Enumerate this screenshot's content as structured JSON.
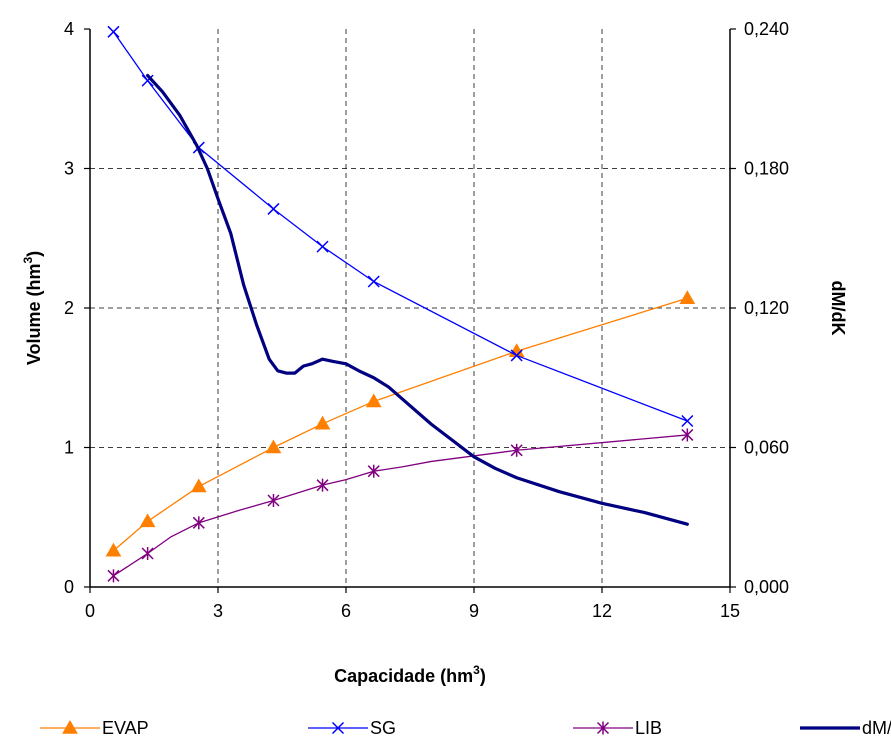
{
  "chart_data": {
    "type": "line",
    "xlabel": "Capacidade (hm",
    "xlabel_sup": "3",
    "xlabel_end": ")",
    "ylabel": "Volume (hm",
    "ylabel_sup": "3",
    "ylabel_end": ")",
    "y2label": "dM/dK",
    "xlim": [
      0,
      15
    ],
    "ylim": [
      0,
      4
    ],
    "y2lim": [
      0,
      0.24
    ],
    "xticks": [
      0,
      3,
      6,
      9,
      12,
      15
    ],
    "xtick_labels": [
      "0",
      "3",
      "6",
      "9",
      "12",
      "15"
    ],
    "yticks": [
      0,
      1,
      2,
      3,
      4
    ],
    "ytick_labels": [
      "0",
      "1",
      "2",
      "3",
      "4"
    ],
    "y2ticks": [
      0,
      0.06,
      0.12,
      0.18,
      0.24
    ],
    "y2tick_labels": [
      "0,000",
      "0,060",
      "0,120",
      "0,180",
      "0,240"
    ],
    "grid": true,
    "legend_position": "bottom",
    "series": [
      {
        "name": "EVAP",
        "axis": "left",
        "color": "#FF7F00",
        "marker": "triangle",
        "x": [
          0.55,
          1.35,
          2.55,
          4.3,
          5.45,
          6.65,
          10,
          14
        ],
        "y": [
          0.26,
          0.47,
          0.72,
          1.0,
          1.17,
          1.33,
          1.69,
          2.07
        ],
        "markers": [
          0.55,
          1.35,
          2.55,
          4.3,
          5.45,
          6.65,
          10,
          14
        ]
      },
      {
        "name": "SG",
        "axis": "left",
        "color": "#0000FF",
        "marker": "x",
        "x": [
          0.55,
          1.35,
          2.55,
          4.3,
          5.45,
          6.65,
          10,
          14
        ],
        "y": [
          3.98,
          3.63,
          3.15,
          2.71,
          2.44,
          2.19,
          1.66,
          1.19
        ],
        "markers": [
          0.55,
          1.35,
          2.55,
          4.3,
          5.45,
          6.65,
          10,
          14
        ]
      },
      {
        "name": "LIB",
        "axis": "left",
        "color": "#800080",
        "marker": "star",
        "x": [
          0.55,
          1.35,
          1.9,
          2.55,
          3.5,
          4.3,
          5.45,
          6,
          6.65,
          7.3,
          8,
          10,
          14
        ],
        "y": [
          0.08,
          0.24,
          0.36,
          0.46,
          0.55,
          0.62,
          0.73,
          0.77,
          0.83,
          0.86,
          0.9,
          0.98,
          1.09
        ],
        "markers": [
          0.55,
          1.35,
          2.55,
          4.3,
          5.45,
          6.65,
          10,
          14
        ]
      },
      {
        "name": "dM/dK",
        "axis": "right",
        "color": "#000080",
        "marker": "none",
        "x": [
          1.35,
          1.7,
          2.1,
          2.5,
          2.75,
          3.0,
          3.3,
          3.6,
          3.9,
          4.2,
          4.4,
          4.6,
          4.8,
          5.0,
          5.2,
          5.45,
          5.7,
          6.0,
          6.3,
          6.65,
          7.0,
          7.5,
          8.0,
          8.5,
          9.0,
          9.5,
          10.0,
          11.0,
          12.0,
          13.0,
          14.0
        ],
        "y": [
          0.22,
          0.213,
          0.203,
          0.19,
          0.18,
          0.167,
          0.152,
          0.13,
          0.113,
          0.098,
          0.093,
          0.092,
          0.092,
          0.095,
          0.096,
          0.098,
          0.097,
          0.096,
          0.093,
          0.09,
          0.086,
          0.078,
          0.07,
          0.063,
          0.056,
          0.051,
          0.047,
          0.041,
          0.036,
          0.032,
          0.027
        ]
      }
    ]
  }
}
